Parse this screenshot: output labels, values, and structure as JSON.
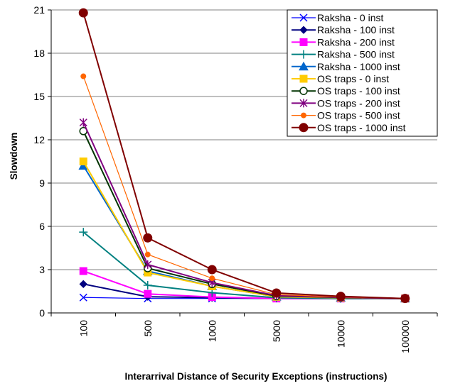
{
  "chart_data": {
    "type": "line",
    "title": "",
    "xlabel": "Interarrival Distance of Security Exceptions (instructions)",
    "ylabel": "Slowdown",
    "categories": [
      "100",
      "500",
      "1000",
      "5000",
      "10000",
      "100000"
    ],
    "ylim": [
      0,
      21
    ],
    "yticks": [
      0,
      3,
      6,
      9,
      12,
      15,
      18,
      21
    ],
    "grid": "horizontal",
    "legend_position": "top-right",
    "series": [
      {
        "name": "Raksha - 0 inst",
        "color": "#0000ff",
        "marker": "x",
        "values": [
          1.07,
          1.0,
          1.0,
          1.0,
          1.0,
          1.0
        ]
      },
      {
        "name": "Raksha - 100 inst",
        "color": "#000080",
        "marker": "diamond",
        "values": [
          2.0,
          1.12,
          1.05,
          1.0,
          1.0,
          1.0
        ]
      },
      {
        "name": "Raksha - 200 inst",
        "color": "#ff00ff",
        "marker": "square",
        "values": [
          2.9,
          1.32,
          1.1,
          1.0,
          1.0,
          1.0
        ]
      },
      {
        "name": "Raksha - 500 inst",
        "color": "#008080",
        "marker": "plus",
        "values": [
          5.6,
          1.92,
          1.4,
          1.05,
          1.0,
          1.0
        ]
      },
      {
        "name": "Raksha - 1000 inst",
        "color": "#0066cc",
        "marker": "triangle",
        "values": [
          10.2,
          2.9,
          1.85,
          1.12,
          1.05,
          1.0
        ]
      },
      {
        "name": "OS traps - 0 inst",
        "color": "#ffcc00",
        "marker": "square",
        "values": [
          10.5,
          2.8,
          1.85,
          1.12,
          1.05,
          1.0
        ]
      },
      {
        "name": "OS traps - 100 inst",
        "color": "#003300",
        "marker": "circle-open",
        "values": [
          12.6,
          3.1,
          2.0,
          1.17,
          1.07,
          1.0
        ]
      },
      {
        "name": "OS traps - 200 inst",
        "color": "#800080",
        "marker": "star",
        "values": [
          13.2,
          3.35,
          2.1,
          1.2,
          1.08,
          1.0
        ]
      },
      {
        "name": "OS traps - 500 inst",
        "color": "#ff6600",
        "marker": "dot",
        "values": [
          16.4,
          4.05,
          2.4,
          1.27,
          1.1,
          1.0
        ]
      },
      {
        "name": "OS traps - 1000 inst",
        "color": "#800000",
        "marker": "circle-filled",
        "values": [
          20.8,
          5.2,
          3.0,
          1.38,
          1.15,
          1.0
        ]
      }
    ]
  }
}
